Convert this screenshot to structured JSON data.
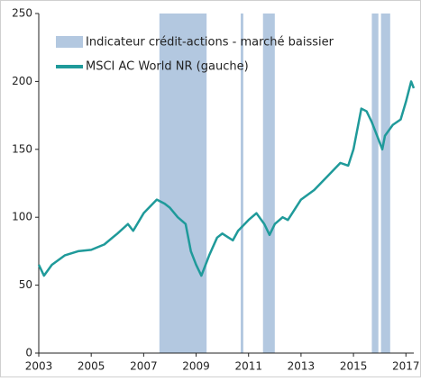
{
  "chart_data": {
    "type": "line",
    "x": [
      2003.0,
      2003.2,
      2003.5,
      2004.0,
      2004.5,
      2005.0,
      2005.5,
      2006.0,
      2006.4,
      2006.6,
      2007.0,
      2007.5,
      2007.8,
      2008.0,
      2008.3,
      2008.6,
      2008.8,
      2009.0,
      2009.2,
      2009.5,
      2009.8,
      2010.0,
      2010.4,
      2010.6,
      2011.0,
      2011.3,
      2011.6,
      2011.8,
      2012.0,
      2012.3,
      2012.5,
      2013.0,
      2013.5,
      2014.0,
      2014.5,
      2014.8,
      2015.0,
      2015.3,
      2015.5,
      2015.7,
      2015.9,
      2016.1,
      2016.2,
      2016.5,
      2016.8,
      2017.0,
      2017.2,
      2017.3
    ],
    "series": [
      {
        "name": "MSCI AC World NR (gauche)",
        "color": "#1f9a9a",
        "values": [
          65,
          57,
          65,
          72,
          75,
          76,
          80,
          88,
          95,
          90,
          103,
          113,
          110,
          107,
          100,
          95,
          75,
          65,
          57,
          72,
          85,
          88,
          83,
          90,
          98,
          103,
          95,
          87,
          95,
          100,
          98,
          113,
          120,
          130,
          140,
          138,
          150,
          180,
          178,
          170,
          160,
          150,
          160,
          168,
          172,
          185,
          200,
          195
        ]
      }
    ],
    "shaded": {
      "name": "Indicateur crédit-actions - marché baissier",
      "color": "#b3c8e0",
      "ranges": [
        [
          2007.6,
          2009.4
        ],
        [
          2010.7,
          2010.8
        ],
        [
          2011.55,
          2012.0
        ],
        [
          2015.7,
          2015.95
        ],
        [
          2016.05,
          2016.4
        ]
      ]
    },
    "xlim": [
      2003,
      2017.3
    ],
    "xticks": [
      2003,
      2005,
      2007,
      2009,
      2011,
      2013,
      2015,
      2017
    ],
    "ylim": [
      0,
      250
    ],
    "yticks": [
      0,
      50,
      100,
      150,
      200,
      250
    ]
  }
}
